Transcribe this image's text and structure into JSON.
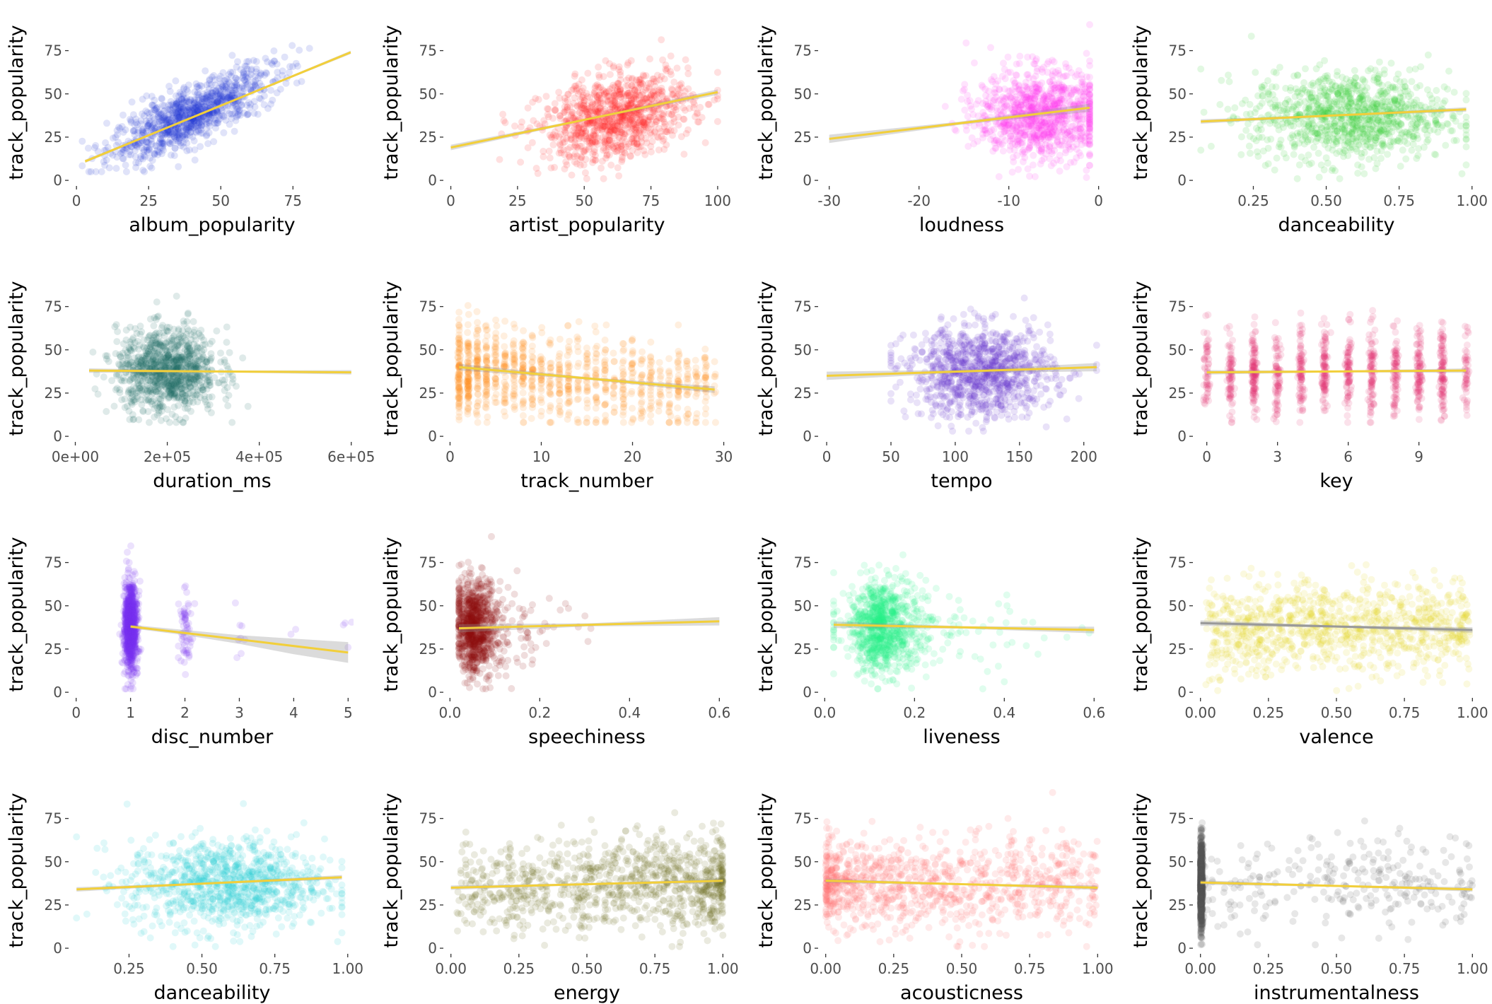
{
  "colors": {
    "trend": "#f2cf3a",
    "confidence_band": "#999999"
  },
  "chart_data": [
    {
      "type": "scatter",
      "xlabel": "album_popularity",
      "ylabel": "track_popularity",
      "color": "#2337d6",
      "xlim": [
        -2,
        96
      ],
      "ylim": [
        -2,
        92
      ],
      "xticks": [
        0,
        25,
        50,
        75
      ],
      "xtick_labels": [
        "0",
        "25",
        "50",
        "75"
      ],
      "yticks": [
        0,
        25,
        50,
        75
      ],
      "ytick_labels": [
        "0",
        "25",
        "50",
        "75"
      ],
      "trend": [
        [
          3,
          11
        ],
        [
          95,
          74
        ]
      ],
      "band": 0.6,
      "point_cloud": {
        "x": [
          2,
          93
        ],
        "y": [
          5,
          85
        ],
        "x_center": 40,
        "x_spread": 14,
        "relation": "linear_strong",
        "slope": 0.75,
        "intercept": 8,
        "noise": 8,
        "count": 1000
      }
    },
    {
      "type": "scatter",
      "xlabel": "artist_popularity",
      "ylabel": "track_popularity",
      "color": "#ff2020",
      "xlim": [
        -2,
        104
      ],
      "ylim": [
        -2,
        92
      ],
      "xticks": [
        0,
        25,
        50,
        75,
        100
      ],
      "xtick_labels": [
        "0",
        "25",
        "50",
        "75",
        "100"
      ],
      "yticks": [
        0,
        25,
        50,
        75
      ],
      "ytick_labels": [
        "0",
        "25",
        "50",
        "75"
      ],
      "trend": [
        [
          0,
          19
        ],
        [
          100,
          51
        ]
      ],
      "band": 1,
      "point_cloud": {
        "x": [
          0,
          100
        ],
        "y": [
          1,
          88
        ],
        "x_center": 62,
        "x_spread": 14,
        "relation": "linear",
        "slope": 0.3,
        "intercept": 18,
        "noise": 12,
        "count": 1000
      }
    },
    {
      "type": "scatter",
      "xlabel": "loudness",
      "ylabel": "track_popularity",
      "color": "#ff3cf0",
      "xlim": [
        -31,
        0.5
      ],
      "ylim": [
        -2,
        92
      ],
      "xticks": [
        -30,
        -20,
        -10,
        0
      ],
      "xtick_labels": [
        "-30",
        "-20",
        "-10",
        "0"
      ],
      "yticks": [
        0,
        25,
        50,
        75
      ],
      "ytick_labels": [
        "0",
        "25",
        "50",
        "75"
      ],
      "trend": [
        [
          -30,
          24
        ],
        [
          -1,
          42
        ]
      ],
      "band": 1.5,
      "point_cloud": {
        "x": [
          -30,
          -1
        ],
        "y": [
          1,
          90
        ],
        "x_center": -6.5,
        "x_spread": 3.5,
        "relation": "flat",
        "mean": 38,
        "noise": 13,
        "count": 1000
      }
    },
    {
      "type": "scatter",
      "xlabel": "danceability",
      "ylabel": "track_popularity",
      "color": "#33cc33",
      "xlim": [
        0.05,
        1.02
      ],
      "ylim": [
        -2,
        92
      ],
      "xticks": [
        0.25,
        0.5,
        0.75,
        1.0
      ],
      "xtick_labels": [
        "0.25",
        "0.50",
        "0.75",
        "1.00"
      ],
      "yticks": [
        0,
        25,
        50,
        75
      ],
      "ytick_labels": [
        "0",
        "25",
        "50",
        "75"
      ],
      "trend": [
        [
          0.07,
          34
        ],
        [
          0.98,
          41
        ]
      ],
      "band": 0.8,
      "point_cloud": {
        "x": [
          0.07,
          0.98
        ],
        "y": [
          1,
          90
        ],
        "x_center": 0.58,
        "x_spread": 0.17,
        "relation": "flat",
        "mean": 37,
        "noise": 13,
        "count": 1000
      }
    },
    {
      "type": "scatter",
      "xlabel": "duration_ms",
      "ylabel": "track_popularity",
      "color": "#1a6b66",
      "xlim": [
        -10000,
        605000
      ],
      "ylim": [
        -2,
        92
      ],
      "xticks": [
        0,
        200000,
        400000,
        600000
      ],
      "xtick_labels": [
        "0e+00",
        "2e+05",
        "4e+05",
        "6e+05"
      ],
      "yticks": [
        0,
        25,
        50,
        75
      ],
      "ytick_labels": [
        "0",
        "25",
        "50",
        "75"
      ],
      "trend": [
        [
          30000,
          38
        ],
        [
          600000,
          37
        ]
      ],
      "band": 0.8,
      "point_cloud": {
        "x": [
          30000,
          600000
        ],
        "y": [
          8,
          90
        ],
        "x_center": 200000,
        "x_spread": 55000,
        "relation": "flat",
        "mean": 38,
        "noise": 12,
        "count": 1000
      }
    },
    {
      "type": "scatter",
      "xlabel": "track_number",
      "ylabel": "track_popularity",
      "color": "#ff8c1a",
      "xlim": [
        -0.5,
        30.5
      ],
      "ylim": [
        -2,
        92
      ],
      "xticks": [
        0,
        10,
        20,
        30
      ],
      "xtick_labels": [
        "0",
        "10",
        "20",
        "30"
      ],
      "yticks": [
        0,
        25,
        50,
        75
      ],
      "ytick_labels": [
        "0",
        "25",
        "50",
        "75"
      ],
      "trend": [
        [
          1,
          40
        ],
        [
          29,
          27
        ]
      ],
      "band": 1.2,
      "point_cloud": {
        "x": [
          1,
          29
        ],
        "y": [
          8,
          90
        ],
        "integer_x": true,
        "x_skew": "decreasing",
        "relation": "linear",
        "slope": -0.45,
        "intercept": 40,
        "noise": 13,
        "count": 1000
      }
    },
    {
      "type": "scatter",
      "xlabel": "tempo",
      "ylabel": "track_popularity",
      "color": "#6633cc",
      "xlim": [
        -5,
        215
      ],
      "ylim": [
        -2,
        92
      ],
      "xticks": [
        0,
        50,
        100,
        150,
        200
      ],
      "xtick_labels": [
        "0",
        "50",
        "100",
        "150",
        "200"
      ],
      "yticks": [
        0,
        25,
        50,
        75
      ],
      "ytick_labels": [
        "0",
        "25",
        "50",
        "75"
      ],
      "trend": [
        [
          0,
          35
        ],
        [
          210,
          40
        ]
      ],
      "band": 1.5,
      "point_cloud": {
        "x": [
          50,
          210
        ],
        "y": [
          3,
          90
        ],
        "x_center": 120,
        "x_spread": 28,
        "relation": "flat",
        "mean": 37,
        "noise": 13,
        "count": 1000
      }
    },
    {
      "type": "scatter",
      "xlabel": "key",
      "ylabel": "track_popularity",
      "color": "#e0306f",
      "xlim": [
        -0.5,
        11.5
      ],
      "ylim": [
        -2,
        92
      ],
      "xticks": [
        0,
        3,
        6,
        9
      ],
      "xtick_labels": [
        "0",
        "3",
        "6",
        "9"
      ],
      "yticks": [
        0,
        25,
        50,
        75
      ],
      "ytick_labels": [
        "0",
        "25",
        "50",
        "75"
      ],
      "trend": [
        [
          0,
          37
        ],
        [
          11,
          38
        ]
      ],
      "band": 0.8,
      "point_cloud": {
        "x": [
          0,
          11
        ],
        "y": [
          8,
          88
        ],
        "integer_x": true,
        "relation": "flat",
        "mean": 37,
        "noise": 12,
        "count": 1000
      }
    },
    {
      "type": "scatter",
      "xlabel": "disc_number",
      "ylabel": "track_popularity",
      "color": "#7733ee",
      "xlim": [
        -0.1,
        5.1
      ],
      "ylim": [
        -2,
        92
      ],
      "xticks": [
        0,
        1,
        2,
        3,
        4,
        5
      ],
      "xtick_labels": [
        "0",
        "1",
        "2",
        "3",
        "4",
        "5"
      ],
      "yticks": [
        0,
        25,
        50,
        75
      ],
      "ytick_labels": [
        "0",
        "25",
        "50",
        "75"
      ],
      "trend": [
        [
          1,
          38
        ],
        [
          5,
          23
        ]
      ],
      "band_lo": [
        [
          1,
          37
        ],
        [
          2,
          33
        ],
        [
          3,
          28
        ],
        [
          4,
          22
        ],
        [
          5,
          17
        ]
      ],
      "band_hi": [
        [
          1,
          39
        ],
        [
          2,
          36
        ],
        [
          3,
          33
        ],
        [
          4,
          31
        ],
        [
          5,
          29
        ]
      ],
      "point_cloud": {
        "discrete": [
          [
            1,
            0.93
          ],
          [
            2,
            0.055
          ],
          [
            3,
            0.01
          ],
          [
            4,
            0.003
          ],
          [
            5,
            0.002
          ]
        ],
        "y": [
          2,
          92
        ],
        "relation": "flat",
        "mean": 38,
        "noise": 13,
        "count": 1000
      }
    },
    {
      "type": "scatter",
      "xlabel": "speechiness",
      "ylabel": "track_popularity",
      "color": "#8b1010",
      "xlim": [
        -0.01,
        0.62
      ],
      "ylim": [
        -2,
        92
      ],
      "xticks": [
        0.0,
        0.2,
        0.4,
        0.6
      ],
      "xtick_labels": [
        "0.0",
        "0.2",
        "0.4",
        "0.6"
      ],
      "yticks": [
        0,
        25,
        50,
        75
      ],
      "ytick_labels": [
        "0",
        "25",
        "50",
        "75"
      ],
      "trend": [
        [
          0.02,
          37
        ],
        [
          0.6,
          41
        ]
      ],
      "band": 1.5,
      "point_cloud": {
        "x": [
          0.02,
          0.6
        ],
        "y": [
          2,
          90
        ],
        "x_center": 0.04,
        "x_spread": 0.03,
        "x_skew": "right",
        "relation": "flat",
        "mean": 38,
        "noise": 13,
        "count": 1000
      }
    },
    {
      "type": "scatter",
      "xlabel": "liveness",
      "ylabel": "track_popularity",
      "color": "#22ee88",
      "xlim": [
        -0.01,
        0.62
      ],
      "ylim": [
        -2,
        92
      ],
      "xticks": [
        0.0,
        0.2,
        0.4,
        0.6
      ],
      "xtick_labels": [
        "0.0",
        "0.2",
        "0.4",
        "0.6"
      ],
      "yticks": [
        0,
        25,
        50,
        75
      ],
      "ytick_labels": [
        "0",
        "25",
        "50",
        "75"
      ],
      "trend": [
        [
          0.02,
          39
        ],
        [
          0.6,
          36
        ]
      ],
      "band": 1.2,
      "point_cloud": {
        "x": [
          0.02,
          0.6
        ],
        "y": [
          2,
          90
        ],
        "x_center": 0.1,
        "x_spread": 0.05,
        "x_skew": "right",
        "relation": "flat",
        "mean": 38,
        "noise": 13,
        "count": 1000
      }
    },
    {
      "type": "scatter",
      "xlabel": "valence",
      "ylabel": "track_popularity",
      "color": "#e3d61f",
      "xlim": [
        -0.02,
        1.02
      ],
      "ylim": [
        -2,
        92
      ],
      "xticks": [
        0.0,
        0.25,
        0.5,
        0.75,
        1.0
      ],
      "xtick_labels": [
        "0.00",
        "0.25",
        "0.50",
        "0.75",
        "1.00"
      ],
      "yticks": [
        0,
        25,
        50,
        75
      ],
      "ytick_labels": [
        "0",
        "25",
        "50",
        "75"
      ],
      "trend": [
        [
          0.0,
          40
        ],
        [
          1.0,
          36
        ]
      ],
      "trend_color": "#999999",
      "band": 1,
      "point_cloud": {
        "x": [
          0.02,
          0.99
        ],
        "y": [
          1,
          90
        ],
        "uniform_x": true,
        "relation": "flat",
        "mean": 37,
        "noise": 13,
        "count": 1000
      }
    },
    {
      "type": "scatter",
      "xlabel": "danceability",
      "ylabel": "track_popularity",
      "color": "#22ccd8",
      "xlim": [
        0.05,
        1.02
      ],
      "ylim": [
        -2,
        92
      ],
      "xticks": [
        0.25,
        0.5,
        0.75,
        1.0
      ],
      "xtick_labels": [
        "0.25",
        "0.50",
        "0.75",
        "1.00"
      ],
      "yticks": [
        0,
        25,
        50,
        75
      ],
      "ytick_labels": [
        "0",
        "25",
        "50",
        "75"
      ],
      "trend": [
        [
          0.07,
          34
        ],
        [
          0.98,
          41
        ]
      ],
      "band": 0.8,
      "point_cloud": {
        "x": [
          0.07,
          0.98
        ],
        "y": [
          1,
          90
        ],
        "x_center": 0.58,
        "x_spread": 0.17,
        "relation": "flat",
        "mean": 37,
        "noise": 13,
        "count": 1000
      }
    },
    {
      "type": "scatter",
      "xlabel": "energy",
      "ylabel": "track_popularity",
      "color": "#6b6b1a",
      "xlim": [
        -0.02,
        1.02
      ],
      "ylim": [
        -2,
        92
      ],
      "xticks": [
        0.0,
        0.25,
        0.5,
        0.75,
        1.0
      ],
      "xtick_labels": [
        "0.00",
        "0.25",
        "0.50",
        "0.75",
        "1.00"
      ],
      "yticks": [
        0,
        25,
        50,
        75
      ],
      "ytick_labels": [
        "0",
        "25",
        "50",
        "75"
      ],
      "trend": [
        [
          0.0,
          35
        ],
        [
          1.0,
          39
        ]
      ],
      "band": 0.8,
      "point_cloud": {
        "x": [
          0.02,
          1.0
        ],
        "y": [
          1,
          90
        ],
        "x_skew": "increasing",
        "relation": "flat",
        "mean": 37,
        "noise": 13,
        "count": 1000
      }
    },
    {
      "type": "scatter",
      "xlabel": "acousticness",
      "ylabel": "track_popularity",
      "color": "#ff6b6b",
      "xlim": [
        -0.02,
        1.02
      ],
      "ylim": [
        -2,
        92
      ],
      "xticks": [
        0.0,
        0.25,
        0.5,
        0.75,
        1.0
      ],
      "xtick_labels": [
        "0.00",
        "0.25",
        "0.50",
        "0.75",
        "1.00"
      ],
      "yticks": [
        0,
        25,
        50,
        75
      ],
      "ytick_labels": [
        "0",
        "25",
        "50",
        "75"
      ],
      "trend": [
        [
          0.0,
          39
        ],
        [
          1.0,
          35
        ]
      ],
      "band": 0.8,
      "point_cloud": {
        "x": [
          0.0,
          1.0
        ],
        "y": [
          1,
          90
        ],
        "x_skew": "decreasing",
        "relation": "flat",
        "mean": 37,
        "noise": 13,
        "count": 1000
      }
    },
    {
      "type": "scatter",
      "xlabel": "instrumentalness",
      "ylabel": "track_popularity",
      "color": "#555555",
      "xlim": [
        -0.02,
        1.02
      ],
      "ylim": [
        -2,
        92
      ],
      "xticks": [
        0.0,
        0.25,
        0.5,
        0.75,
        1.0
      ],
      "xtick_labels": [
        "0.00",
        "0.25",
        "0.50",
        "0.75",
        "1.00"
      ],
      "yticks": [
        0,
        25,
        50,
        75
      ],
      "ytick_labels": [
        "0",
        "25",
        "50",
        "75"
      ],
      "trend": [
        [
          0.0,
          38
        ],
        [
          1.0,
          34
        ]
      ],
      "band": 0.8,
      "point_cloud": {
        "x": [
          0.0,
          1.0
        ],
        "y": [
          2,
          90
        ],
        "zero_inflated": 0.7,
        "relation": "flat",
        "mean": 37,
        "noise": 13,
        "count": 1000
      }
    }
  ]
}
